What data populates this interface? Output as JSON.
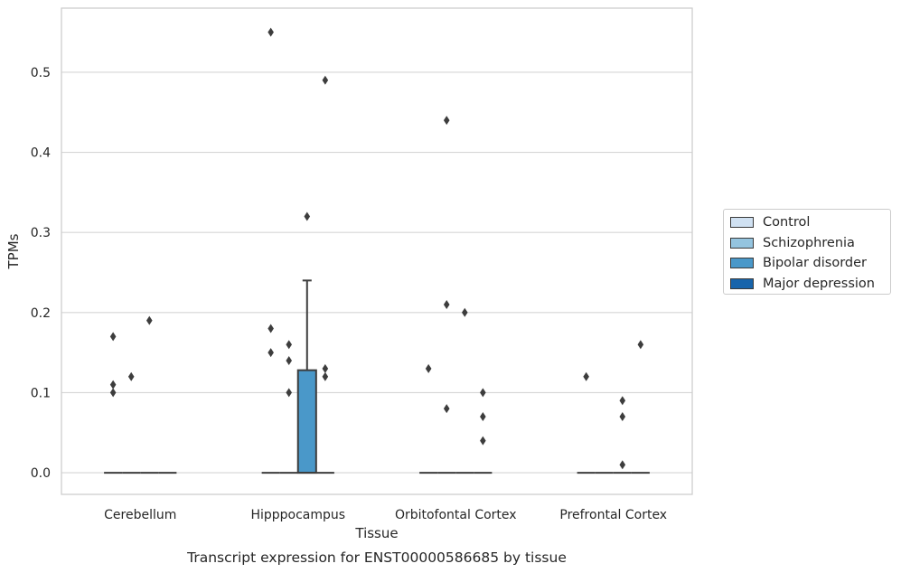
{
  "chart_data": {
    "type": "box",
    "caption": "Transcript expression for ENST00000586685 by tissue",
    "xlabel": "Tissue",
    "ylabel": "TPMs",
    "ylim": [
      -0.027,
      0.58
    ],
    "yticks": [
      "0.0",
      "0.1",
      "0.2",
      "0.3",
      "0.4",
      "0.5"
    ],
    "ytick_values": [
      0.0,
      0.1,
      0.2,
      0.3,
      0.4,
      0.5
    ],
    "categories": [
      "Cerebellum",
      "Hipppocampus",
      "Orbitofontal Cortex",
      "Prefrontal Cortex"
    ],
    "grid": true,
    "legend_position": "right",
    "series": [
      {
        "name": "Control",
        "color": "#d0e1f2"
      },
      {
        "name": "Schizophrenia",
        "color": "#94c4df"
      },
      {
        "name": "Bipolar disorder",
        "color": "#4a98c9"
      },
      {
        "name": "Major depression",
        "color": "#1764ab"
      }
    ],
    "boxes": [
      {
        "category": "Cerebellum",
        "series": "Control",
        "q1": 0,
        "median": 0,
        "q3": 0,
        "whisker_low": 0,
        "whisker_high": 0,
        "outliers": [
          0.17,
          0.11,
          0.1
        ]
      },
      {
        "category": "Cerebellum",
        "series": "Schizophrenia",
        "q1": 0,
        "median": 0,
        "q3": 0,
        "whisker_low": 0,
        "whisker_high": 0,
        "outliers": [
          0.12
        ]
      },
      {
        "category": "Cerebellum",
        "series": "Bipolar disorder",
        "q1": 0,
        "median": 0,
        "q3": 0,
        "whisker_low": 0,
        "whisker_high": 0,
        "outliers": [
          0.19
        ]
      },
      {
        "category": "Cerebellum",
        "series": "Major depression",
        "q1": 0,
        "median": 0,
        "q3": 0,
        "whisker_low": 0,
        "whisker_high": 0,
        "outliers": []
      },
      {
        "category": "Hipppocampus",
        "series": "Control",
        "q1": 0,
        "median": 0,
        "q3": 0,
        "whisker_low": 0,
        "whisker_high": 0,
        "outliers": [
          0.55,
          0.18,
          0.15
        ]
      },
      {
        "category": "Hipppocampus",
        "series": "Schizophrenia",
        "q1": 0,
        "median": 0,
        "q3": 0,
        "whisker_low": 0,
        "whisker_high": 0,
        "outliers": [
          0.16,
          0.14,
          0.1
        ]
      },
      {
        "category": "Hipppocampus",
        "series": "Bipolar disorder",
        "q1": 0,
        "median": 0,
        "q3": 0.128,
        "whisker_low": 0,
        "whisker_high": 0.24,
        "outliers": [
          0.32
        ]
      },
      {
        "category": "Hipppocampus",
        "series": "Major depression",
        "q1": 0,
        "median": 0,
        "q3": 0,
        "whisker_low": 0,
        "whisker_high": 0,
        "outliers": [
          0.49,
          0.13,
          0.12
        ]
      },
      {
        "category": "Orbitofontal Cortex",
        "series": "Control",
        "q1": 0,
        "median": 0,
        "q3": 0,
        "whisker_low": 0,
        "whisker_high": 0,
        "outliers": [
          0.13
        ]
      },
      {
        "category": "Orbitofontal Cortex",
        "series": "Schizophrenia",
        "q1": 0,
        "median": 0,
        "q3": 0,
        "whisker_low": 0,
        "whisker_high": 0,
        "outliers": [
          0.44,
          0.21,
          0.08
        ]
      },
      {
        "category": "Orbitofontal Cortex",
        "series": "Bipolar disorder",
        "q1": 0,
        "median": 0,
        "q3": 0,
        "whisker_low": 0,
        "whisker_high": 0,
        "outliers": [
          0.2
        ]
      },
      {
        "category": "Orbitofontal Cortex",
        "series": "Major depression",
        "q1": 0,
        "median": 0,
        "q3": 0,
        "whisker_low": 0,
        "whisker_high": 0,
        "outliers": [
          0.1,
          0.07,
          0.04
        ]
      },
      {
        "category": "Prefrontal Cortex",
        "series": "Control",
        "q1": 0,
        "median": 0,
        "q3": 0,
        "whisker_low": 0,
        "whisker_high": 0,
        "outliers": [
          0.12
        ]
      },
      {
        "category": "Prefrontal Cortex",
        "series": "Schizophrenia",
        "q1": 0,
        "median": 0,
        "q3": 0,
        "whisker_low": 0,
        "whisker_high": 0,
        "outliers": []
      },
      {
        "category": "Prefrontal Cortex",
        "series": "Bipolar disorder",
        "q1": 0,
        "median": 0,
        "q3": 0,
        "whisker_low": 0,
        "whisker_high": 0,
        "outliers": [
          0.09,
          0.07,
          0.01
        ]
      },
      {
        "category": "Prefrontal Cortex",
        "series": "Major depression",
        "q1": 0,
        "median": 0,
        "q3": 0,
        "whisker_low": 0,
        "whisker_high": 0,
        "outliers": [
          0.16
        ]
      }
    ]
  }
}
